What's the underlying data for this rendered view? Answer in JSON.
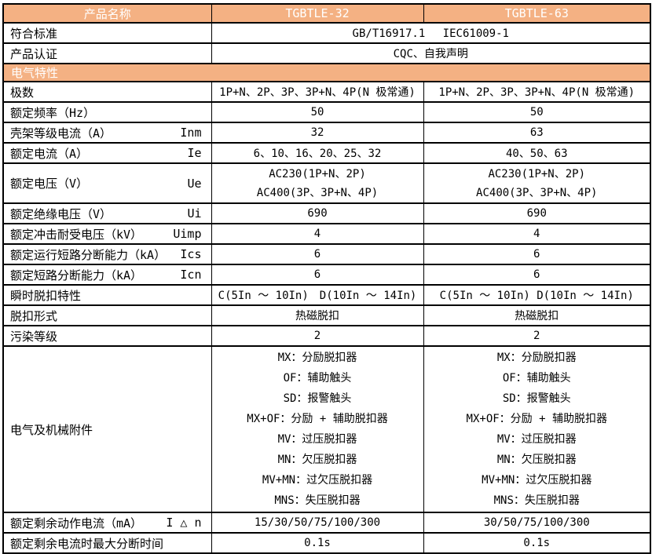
{
  "colors": {
    "header_bg": "#F4B183",
    "header_text": "#FFFFFF",
    "border": "#000000",
    "body_text": "#000000"
  },
  "header": {
    "product_name": "产品名称",
    "model_a": "TGBTLE-32",
    "model_b": "TGBTLE-63"
  },
  "info_rows": [
    {
      "label": "符合标准",
      "value": "GB/T16917.1　 IEC61009-1"
    },
    {
      "label": "产品认证",
      "value": "CQC、自我声明"
    }
  ],
  "section_title": "电气特性",
  "spec_rows": [
    {
      "label": "极数",
      "symbol": "",
      "a": "1P+N、2P、3P、3P+N、4P(N 极常通)",
      "b": "1P+N、2P、3P、3P+N、4P(N 极常通)"
    },
    {
      "label": "额定频率（Hz）",
      "symbol": "",
      "a": "50",
      "b": "50"
    },
    {
      "label": "壳架等级电流（A）",
      "symbol": "Inm",
      "a": "32",
      "b": "63"
    },
    {
      "label": "额定电流（A）",
      "symbol": "Ie",
      "a": "6、10、16、20、25、32",
      "b": "40、50、63"
    },
    {
      "label": "额定电压（V）",
      "symbol": "Ue",
      "a_lines": [
        "AC230(1P+N、2P)",
        "AC400(3P、3P+N、4P)"
      ],
      "b_lines": [
        "AC230(1P+N、2P)",
        "AC400(3P、3P+N、4P)"
      ]
    },
    {
      "label": "额定绝缘电压（V）",
      "symbol": "Ui",
      "a": "690",
      "b": "690"
    },
    {
      "label": "额定冲击耐受电压（kV）",
      "symbol": "Uimp",
      "a": "4",
      "b": "4"
    },
    {
      "label": "额定运行短路分断能力（kA）",
      "symbol": "Ics",
      "a": "6",
      "b": "6"
    },
    {
      "label": "额定短路分断能力（kA）",
      "symbol": "Icn",
      "a": "6",
      "b": "6"
    },
    {
      "label": "瞬时脱扣特性",
      "symbol": "",
      "a": "C(5In ～ 10In)　D(10In ～ 14In)",
      "b": "C(5In ～ 10In) D(10In ～ 14In)"
    },
    {
      "label": "脱扣形式",
      "symbol": "",
      "a": "热磁脱扣",
      "b": "热磁脱扣"
    },
    {
      "label": "污染等级",
      "symbol": "",
      "a": "2",
      "b": "2"
    }
  ],
  "accessories": {
    "label": "电气及机械附件",
    "items_a": [
      "MX：分励脱扣器",
      "OF：辅助触头",
      "SD：报警触头",
      "MX+OF：分励 + 辅助脱扣器",
      "MV：过压脱扣器",
      "MN：欠压脱扣器",
      "MV+MN：过欠压脱扣器",
      "MNS：失压脱扣器"
    ],
    "items_b": [
      "MX：分励脱扣器",
      "OF：辅助触头",
      "SD：报警触头",
      "MX+OF：分励 + 辅助脱扣器",
      "MV：过压脱扣器",
      "MN：欠压脱扣器",
      "MV+MN：过欠压脱扣器",
      "MNS：失压脱扣器"
    ]
  },
  "residual_rows": [
    {
      "label": "额定剩余动作电流（mA）",
      "symbol": "I △ n",
      "a": "15/30/50/75/100/300",
      "b": "30/50/75/100/300"
    },
    {
      "label": "额定剩余电流时最大分断时间",
      "symbol": "",
      "a": "0.1s",
      "b": "0.1s"
    }
  ]
}
